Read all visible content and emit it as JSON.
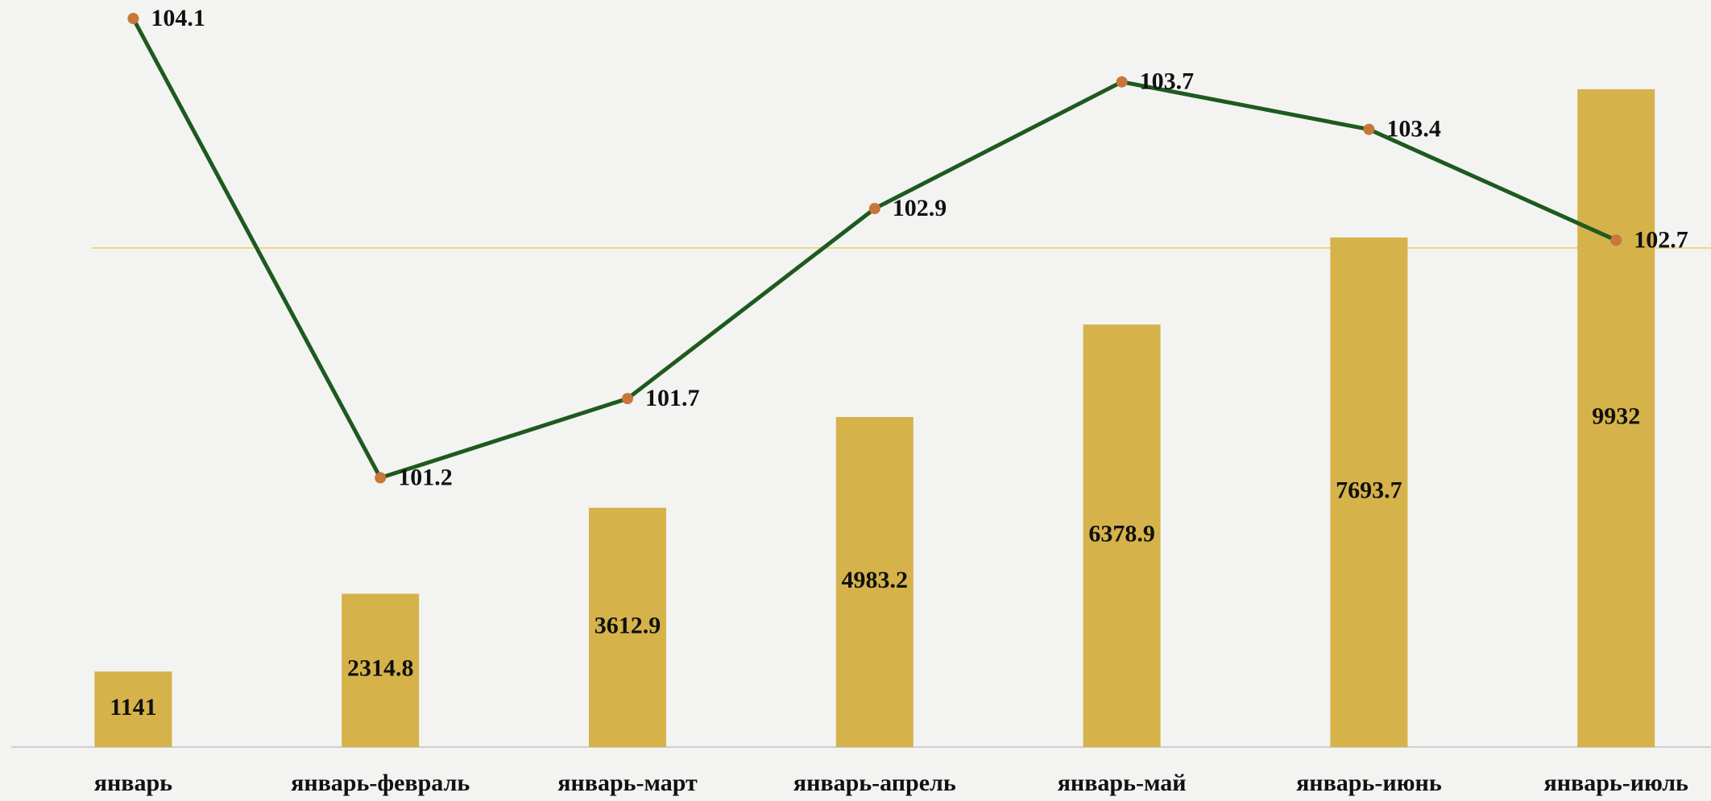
{
  "chart_data": {
    "type": "bar_line",
    "categories": [
      "январь",
      "январь-февраль",
      "январь-март",
      "январь-апрель",
      "январь-май",
      "январь-июнь",
      "январь-июль"
    ],
    "series": [
      {
        "type": "bar",
        "color": "#d6b24a",
        "values": [
          1141,
          2314.8,
          3612.9,
          4983.2,
          6378.9,
          7693.7,
          9932
        ]
      },
      {
        "type": "line",
        "axis": "y2",
        "color": "#1e5a1e",
        "marker_color": "#c8763a",
        "values": [
          104.1,
          101.2,
          101.7,
          102.9,
          103.7,
          103.4,
          102.7
        ]
      }
    ],
    "ylim": [
      0,
      11000
    ],
    "y2lim": [
      99.5,
      104.1
    ]
  }
}
